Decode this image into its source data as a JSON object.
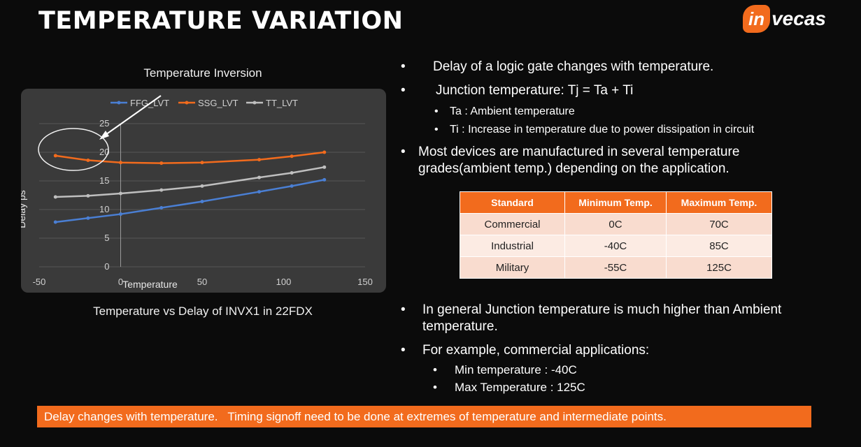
{
  "slide": {
    "title": "TEMPERATURE VARIATION",
    "logo_badge": "in",
    "logo_rest": "vecas",
    "banner": "Delay changes with temperature.   Timing signoff need to be done at extremes of temperature and intermediate points."
  },
  "chart_data": {
    "type": "line",
    "title": "Temperature Inversion",
    "caption": "Temperature vs Delay of INVX1 in 22FDX",
    "xlabel": "Temperature",
    "ylabel": "Delay ps",
    "xlim": [
      -50,
      150
    ],
    "ylim": [
      0,
      25
    ],
    "xticks": [
      -50,
      0,
      50,
      100,
      150
    ],
    "yticks": [
      0,
      5,
      10,
      15,
      20,
      25
    ],
    "grid": "horizontal",
    "legend": "top",
    "x": [
      -40,
      -20,
      0,
      25,
      50,
      85,
      105,
      125
    ],
    "series": [
      {
        "name": "FFG_LVT",
        "color": "#4a7fd4",
        "values": [
          7.8,
          8.5,
          9.2,
          10.3,
          11.4,
          13.1,
          14.1,
          15.2
        ]
      },
      {
        "name": "SSG_LVT",
        "color": "#f26b1d",
        "values": [
          19.4,
          18.6,
          18.2,
          18.1,
          18.2,
          18.7,
          19.3,
          20.0
        ]
      },
      {
        "name": "TT_LVT",
        "color": "#bfbfbf",
        "values": [
          12.2,
          12.4,
          12.8,
          13.4,
          14.1,
          15.6,
          16.4,
          17.4
        ]
      }
    ]
  },
  "bullets": {
    "b1": "Delay of a logic gate changes with temperature.",
    "b2": "Junction temperature: Tj   =   Ta + Ti",
    "b2_sub1": "Ta : Ambient temperature",
    "b2_sub2": "Ti  : Increase in temperature due to power dissipation in circuit",
    "b3_line1": "Most devices are manufactured in several temperature",
    "b3_line2": "grades(ambient temp.) depending on the application.",
    "b4_line1": "In general Junction temperature is much higher than Ambient",
    "b4_line2": "temperature.",
    "b5": "For example, commercial applications:",
    "b5_sub1": "Min temperature :  -40C",
    "b5_sub2": "Max Temperature : 125C",
    "dot": "•"
  },
  "table": {
    "headers": [
      "Standard",
      "Minimum Temp.",
      "Maximum Temp."
    ],
    "rows": [
      [
        "Commercial",
        "0C",
        "70C"
      ],
      [
        "Industrial",
        "-40C",
        "85C"
      ],
      [
        "Military",
        "-55C",
        "125C"
      ]
    ]
  }
}
